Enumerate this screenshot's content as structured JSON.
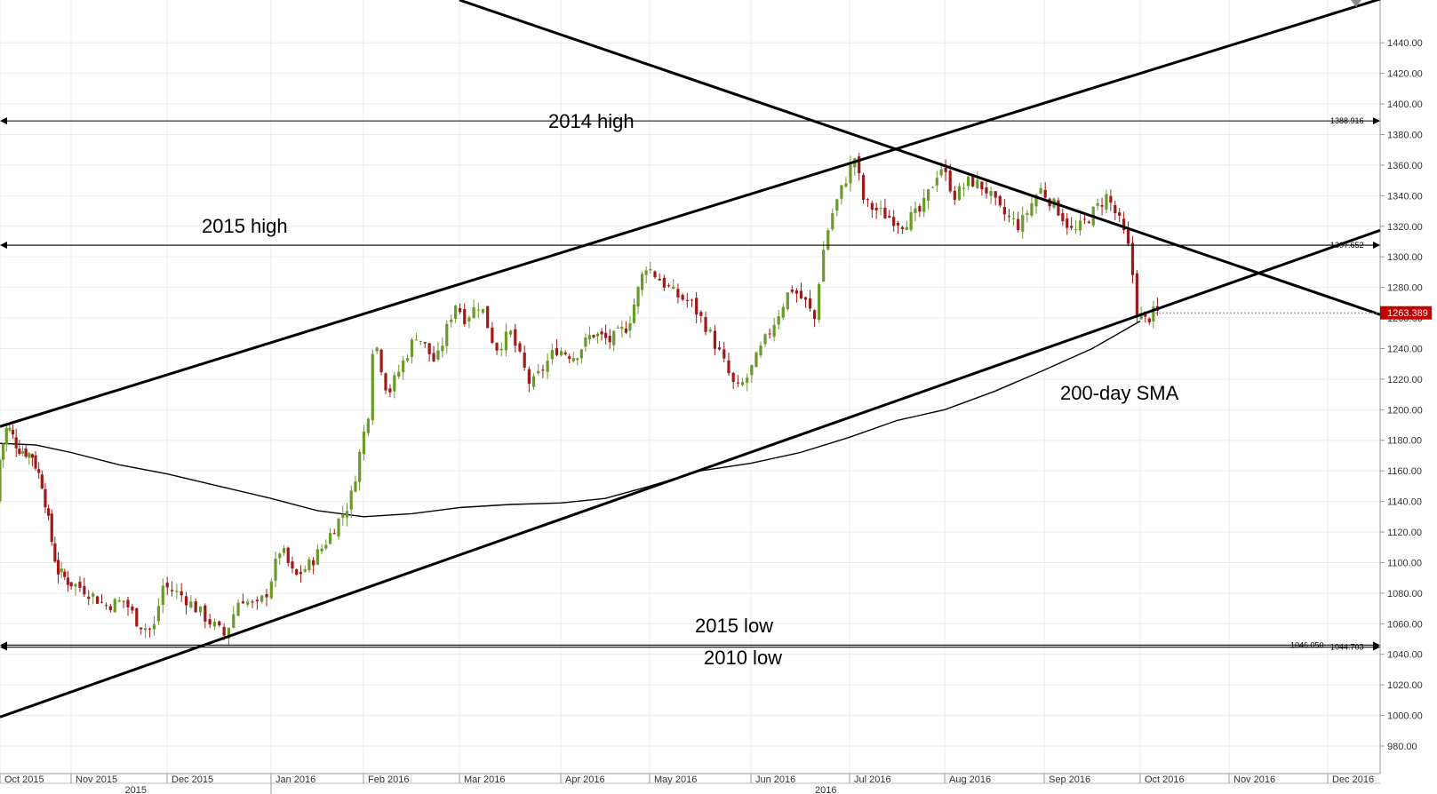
{
  "chart_data": {
    "type": "candlestick",
    "title": "",
    "xlabel": "",
    "ylabel": "",
    "ylim": [
      962,
      1468
    ],
    "y_ticks": [
      "980.00",
      "1000.00",
      "1020.00",
      "1040.00",
      "1060.00",
      "1080.00",
      "1100.00",
      "1120.00",
      "1140.00",
      "1160.00",
      "1180.00",
      "1200.00",
      "1220.00",
      "1240.00",
      "1260.00",
      "1280.00",
      "1300.00",
      "1320.00",
      "1340.00",
      "1360.00",
      "1380.00",
      "1400.00",
      "1420.00",
      "1440.00"
    ],
    "months": [
      "Oct 2015",
      "Nov 2015",
      "Dec 2015",
      "Jan 2016",
      "Feb 2016",
      "Mar 2016",
      "Apr 2016",
      "May 2016",
      "Jun 2016",
      "Jul 2016",
      "Aug 2016",
      "Sep 2016",
      "Oct 2016",
      "Nov 2016",
      "Dec 2016"
    ],
    "years": [
      "2015",
      "2016"
    ],
    "last_price": "1263.389",
    "last_price_color": "#c00000",
    "bull_color": "#6a9a2a",
    "bear_color": "#a01818",
    "levels": [
      {
        "name": "2014 high",
        "value": 1388.916,
        "value_label": "1388.916"
      },
      {
        "name": "2015 high",
        "value": 1307.652,
        "value_label": "1307.652"
      },
      {
        "name": "2015 low",
        "value": 1046.05,
        "value_label": "1046.050"
      },
      {
        "name": "2010 low",
        "value": 1044.703,
        "value_label": "1044.703"
      }
    ],
    "annotations": {
      "high_2014": "2014 high",
      "high_2015": "2015 high",
      "low_2015": "2015 low",
      "low_2010": "2010 low",
      "sma": "200-day SMA"
    },
    "trendlines": [
      {
        "name": "upper-channel",
        "from": [
          "Oct 2015",
          1189
        ],
        "to": [
          "Dec 2016",
          1458
        ]
      },
      {
        "name": "lower-channel",
        "from": [
          "Oct 2015",
          999
        ],
        "to": [
          "Oct 2016",
          1262
        ]
      },
      {
        "name": "descending-resistance",
        "from": [
          "Mar 2016",
          1468
        ],
        "to": [
          "Nov 2016",
          1296
        ]
      }
    ],
    "sma_path": [
      [
        0,
        1178
      ],
      [
        0.5,
        1177
      ],
      [
        1,
        1172
      ],
      [
        1.5,
        1164
      ],
      [
        2,
        1158
      ],
      [
        2.5,
        1150
      ],
      [
        3,
        1142
      ],
      [
        3.5,
        1134
      ],
      [
        4,
        1130
      ],
      [
        4.5,
        1132
      ],
      [
        5,
        1136
      ],
      [
        5.5,
        1138
      ],
      [
        6,
        1139
      ],
      [
        6.5,
        1142
      ],
      [
        7,
        1150
      ],
      [
        7.5,
        1160
      ],
      [
        8,
        1165
      ],
      [
        8.5,
        1172
      ],
      [
        9,
        1182
      ],
      [
        9.5,
        1193
      ],
      [
        10,
        1200
      ],
      [
        10.5,
        1212
      ],
      [
        11,
        1226
      ],
      [
        11.5,
        1240
      ],
      [
        12,
        1258
      ]
    ],
    "price_path": [
      [
        0,
        1140
      ],
      [
        0.05,
        1170
      ],
      [
        0.15,
        1190
      ],
      [
        0.3,
        1175
      ],
      [
        0.5,
        1170
      ],
      [
        0.65,
        1150
      ],
      [
        0.75,
        1120
      ],
      [
        0.85,
        1095
      ],
      [
        1,
        1088
      ],
      [
        1.2,
        1082
      ],
      [
        1.4,
        1072
      ],
      [
        1.6,
        1075
      ],
      [
        1.75,
        1060
      ],
      [
        1.9,
        1055
      ],
      [
        2,
        1085
      ],
      [
        2.2,
        1078
      ],
      [
        2.4,
        1065
      ],
      [
        2.6,
        1052
      ],
      [
        2.75,
        1078
      ],
      [
        2.9,
        1070
      ],
      [
        3,
        1080
      ],
      [
        3.15,
        1110
      ],
      [
        3.3,
        1090
      ],
      [
        3.45,
        1098
      ],
      [
        3.6,
        1110
      ],
      [
        3.75,
        1125
      ],
      [
        3.9,
        1140
      ],
      [
        4,
        1170
      ],
      [
        4.1,
        1200
      ],
      [
        4.15,
        1250
      ],
      [
        4.3,
        1210
      ],
      [
        4.45,
        1230
      ],
      [
        4.6,
        1250
      ],
      [
        4.8,
        1230
      ],
      [
        5,
        1270
      ],
      [
        5.1,
        1260
      ],
      [
        5.25,
        1270
      ],
      [
        5.4,
        1240
      ],
      [
        5.55,
        1250
      ],
      [
        5.75,
        1215
      ],
      [
        5.9,
        1230
      ],
      [
        6,
        1240
      ],
      [
        6.2,
        1235
      ],
      [
        6.4,
        1250
      ],
      [
        6.6,
        1245
      ],
      [
        6.8,
        1255
      ],
      [
        7,
        1295
      ],
      [
        7.15,
        1285
      ],
      [
        7.3,
        1275
      ],
      [
        7.45,
        1270
      ],
      [
        7.6,
        1255
      ],
      [
        7.75,
        1235
      ],
      [
        7.9,
        1212
      ],
      [
        8,
        1220
      ],
      [
        8.15,
        1240
      ],
      [
        8.3,
        1260
      ],
      [
        8.45,
        1280
      ],
      [
        8.6,
        1270
      ],
      [
        8.7,
        1258
      ],
      [
        8.75,
        1295
      ],
      [
        8.85,
        1325
      ],
      [
        9,
        1350
      ],
      [
        9.1,
        1365
      ],
      [
        9.2,
        1335
      ],
      [
        9.4,
        1328
      ],
      [
        9.6,
        1322
      ],
      [
        9.8,
        1330
      ],
      [
        10,
        1360
      ],
      [
        10.15,
        1340
      ],
      [
        10.3,
        1350
      ],
      [
        10.45,
        1345
      ],
      [
        10.6,
        1330
      ],
      [
        10.8,
        1320
      ],
      [
        11,
        1345
      ],
      [
        11.2,
        1330
      ],
      [
        11.35,
        1315
      ],
      [
        11.5,
        1325
      ],
      [
        11.7,
        1340
      ],
      [
        11.85,
        1320
      ],
      [
        11.95,
        1300
      ],
      [
        12,
        1265
      ],
      [
        12.1,
        1258
      ],
      [
        12.2,
        1263.389
      ]
    ]
  }
}
